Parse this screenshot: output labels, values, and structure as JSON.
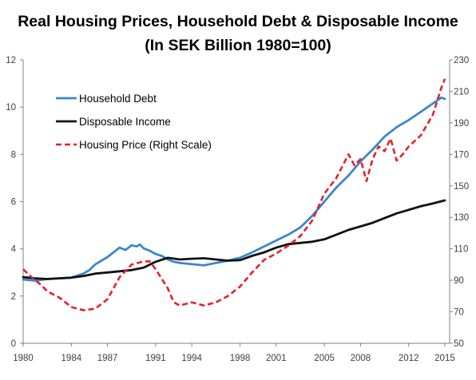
{
  "chart_data": {
    "type": "line",
    "title": "Real Housing Prices, Household Debt & Disposable Income",
    "subtitle": "(In SEK Billion 1980=100)",
    "xlim": [
      1980,
      2015.4
    ],
    "ylim_left": [
      0,
      12
    ],
    "ylim_right": [
      50,
      230
    ],
    "x_ticks": [
      1980,
      1984,
      1987,
      1991,
      1994,
      1998,
      2001,
      2005,
      2008,
      2012,
      2015
    ],
    "y_ticks_left": [
      0,
      2,
      4,
      6,
      8,
      10,
      12
    ],
    "y_ticks_right": [
      50,
      70,
      90,
      110,
      130,
      150,
      170,
      190,
      210,
      230
    ],
    "grid": false,
    "legend_position": "top-left",
    "series": [
      {
        "name": "Household Debt",
        "axis": "left",
        "color": "#3a87cc",
        "style": "solid",
        "points": [
          [
            1980,
            2.7
          ],
          [
            1981,
            2.65
          ],
          [
            1982,
            2.72
          ],
          [
            1983,
            2.75
          ],
          [
            1984,
            2.78
          ],
          [
            1985,
            2.95
          ],
          [
            1985.5,
            3.1
          ],
          [
            1986,
            3.35
          ],
          [
            1986.5,
            3.5
          ],
          [
            1987,
            3.65
          ],
          [
            1987.5,
            3.85
          ],
          [
            1988,
            4.05
          ],
          [
            1988.5,
            3.95
          ],
          [
            1989,
            4.15
          ],
          [
            1989.4,
            4.1
          ],
          [
            1989.7,
            4.18
          ],
          [
            1990,
            4.02
          ],
          [
            1990.5,
            3.92
          ],
          [
            1991,
            3.78
          ],
          [
            1991.5,
            3.7
          ],
          [
            1992,
            3.55
          ],
          [
            1992.5,
            3.45
          ],
          [
            1993,
            3.4
          ],
          [
            1994,
            3.35
          ],
          [
            1995,
            3.3
          ],
          [
            1996,
            3.4
          ],
          [
            1997,
            3.5
          ],
          [
            1998,
            3.62
          ],
          [
            1999,
            3.85
          ],
          [
            2000,
            4.1
          ],
          [
            2001,
            4.35
          ],
          [
            2002,
            4.6
          ],
          [
            2003,
            4.9
          ],
          [
            2004,
            5.4
          ],
          [
            2005,
            6.0
          ],
          [
            2006,
            6.6
          ],
          [
            2007,
            7.1
          ],
          [
            2008,
            7.7
          ],
          [
            2009,
            8.2
          ],
          [
            2010,
            8.75
          ],
          [
            2011,
            9.15
          ],
          [
            2012,
            9.45
          ],
          [
            2013,
            9.8
          ],
          [
            2014,
            10.15
          ],
          [
            2014.7,
            10.4
          ],
          [
            2015,
            10.35
          ]
        ]
      },
      {
        "name": "Disposable Income",
        "axis": "left",
        "color": "#111111",
        "style": "solid",
        "points": [
          [
            1980,
            2.8
          ],
          [
            1981,
            2.75
          ],
          [
            1982,
            2.72
          ],
          [
            1983,
            2.75
          ],
          [
            1984,
            2.78
          ],
          [
            1985,
            2.85
          ],
          [
            1986,
            2.95
          ],
          [
            1987,
            3.0
          ],
          [
            1988,
            3.05
          ],
          [
            1989,
            3.1
          ],
          [
            1990,
            3.2
          ],
          [
            1991,
            3.45
          ],
          [
            1992,
            3.62
          ],
          [
            1993,
            3.55
          ],
          [
            1994,
            3.58
          ],
          [
            1995,
            3.6
          ],
          [
            1996,
            3.55
          ],
          [
            1997,
            3.5
          ],
          [
            1998,
            3.52
          ],
          [
            1999,
            3.7
          ],
          [
            2000,
            3.85
          ],
          [
            2001,
            4.05
          ],
          [
            2002,
            4.2
          ],
          [
            2003,
            4.25
          ],
          [
            2004,
            4.3
          ],
          [
            2005,
            4.4
          ],
          [
            2006,
            4.6
          ],
          [
            2007,
            4.8
          ],
          [
            2008,
            4.95
          ],
          [
            2009,
            5.1
          ],
          [
            2010,
            5.3
          ],
          [
            2011,
            5.5
          ],
          [
            2012,
            5.65
          ],
          [
            2013,
            5.8
          ],
          [
            2014,
            5.92
          ],
          [
            2015,
            6.05
          ]
        ]
      },
      {
        "name": "Housing Price (Right Scale)",
        "axis": "right",
        "color": "#e8202a",
        "style": "dashed",
        "points": [
          [
            1980,
            97
          ],
          [
            1980.7,
            92
          ],
          [
            1981.5,
            87
          ],
          [
            1982,
            83
          ],
          [
            1983,
            79
          ],
          [
            1984,
            73
          ],
          [
            1985,
            71
          ],
          [
            1986,
            72
          ],
          [
            1987,
            78
          ],
          [
            1988,
            92
          ],
          [
            1989,
            100
          ],
          [
            1990,
            102
          ],
          [
            1990.5,
            102
          ],
          [
            1991,
            97
          ],
          [
            1992,
            85
          ],
          [
            1992.5,
            76
          ],
          [
            1993,
            74
          ],
          [
            1994,
            76
          ],
          [
            1995,
            74
          ],
          [
            1996,
            76
          ],
          [
            1997,
            80
          ],
          [
            1998,
            86
          ],
          [
            1999,
            95
          ],
          [
            2000,
            103
          ],
          [
            2001,
            107
          ],
          [
            2002,
            112
          ],
          [
            2003,
            118
          ],
          [
            2004,
            128
          ],
          [
            2005,
            145
          ],
          [
            2006,
            155
          ],
          [
            2007,
            170
          ],
          [
            2007.5,
            163
          ],
          [
            2008,
            167
          ],
          [
            2008.5,
            153
          ],
          [
            2009,
            167
          ],
          [
            2009.5,
            175
          ],
          [
            2010,
            172
          ],
          [
            2010.5,
            180
          ],
          [
            2011,
            166
          ],
          [
            2011.5,
            170
          ],
          [
            2012,
            175
          ],
          [
            2013,
            182
          ],
          [
            2014,
            195
          ],
          [
            2014.7,
            212
          ],
          [
            2015,
            218
          ]
        ]
      }
    ]
  }
}
